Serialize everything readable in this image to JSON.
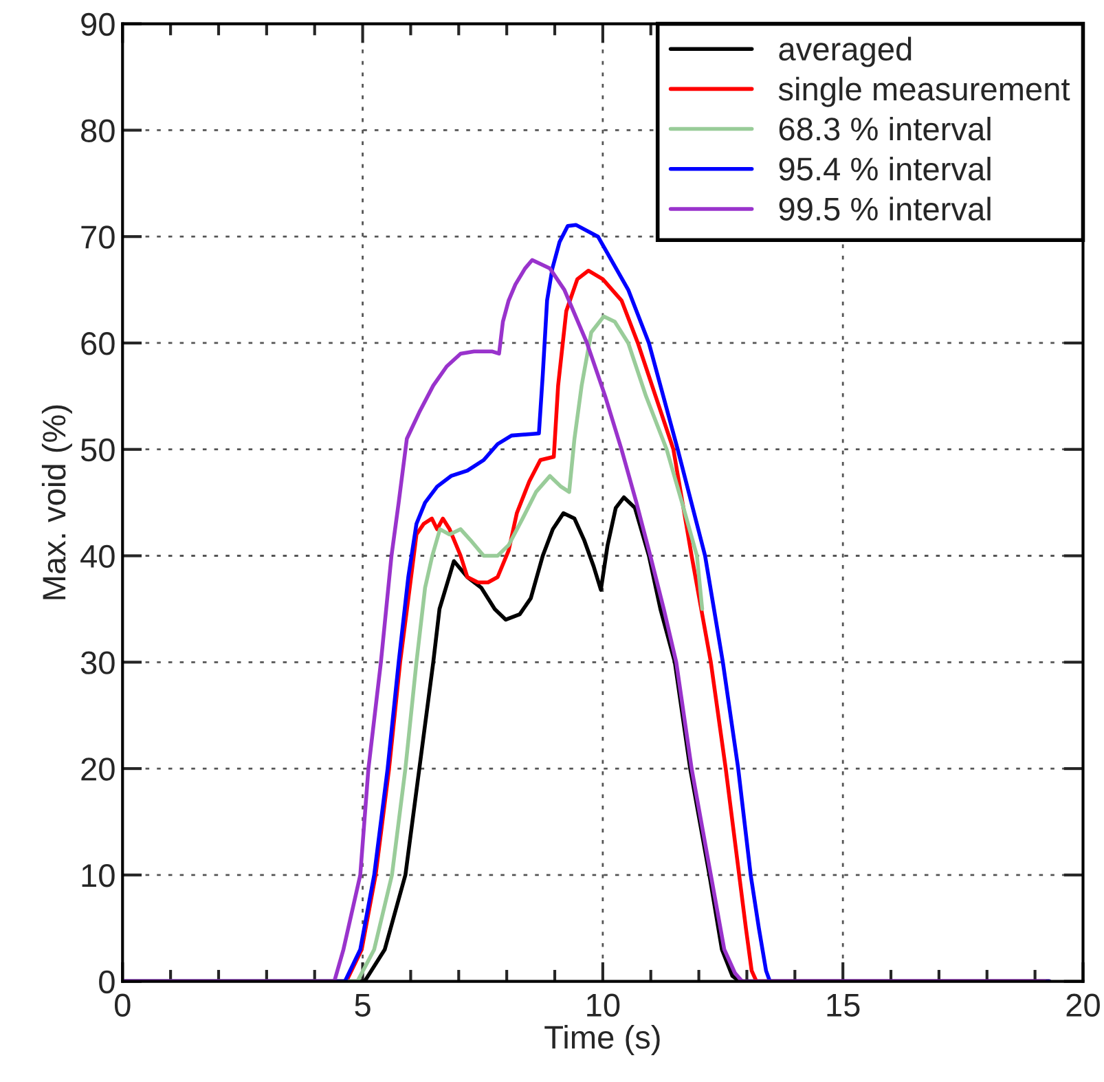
{
  "chart_data": {
    "type": "line",
    "xlabel": "Time (s)",
    "ylabel": "Max. void (%)",
    "xlim": [
      0,
      20
    ],
    "ylim": [
      0,
      90
    ],
    "xticks": [
      0,
      {
        "value": 1,
        "label": null
      },
      {
        "value": 2,
        "label": null
      },
      {
        "value": 3,
        "label": null
      },
      {
        "value": 4,
        "label": null
      },
      5,
      {
        "value": 6,
        "label": null
      },
      {
        "value": 7,
        "label": null
      },
      {
        "value": 8,
        "label": null
      },
      {
        "value": 9,
        "label": null
      },
      10,
      {
        "value": 11,
        "label": null
      },
      {
        "value": 12,
        "label": null
      },
      {
        "value": 13,
        "label": null
      },
      {
        "value": 14,
        "label": null
      },
      15,
      {
        "value": 16,
        "label": null
      },
      {
        "value": 17,
        "label": null
      },
      {
        "value": 18,
        "label": null
      },
      {
        "value": 19,
        "label": null
      },
      20
    ],
    "yticks": [
      0,
      10,
      20,
      30,
      40,
      50,
      60,
      70,
      80,
      90
    ],
    "grid": true,
    "legend": "top right",
    "marker": "none",
    "line_style": "solid",
    "series": [
      {
        "name": "averaged",
        "color": "#000000",
        "x": [
          0,
          5.04,
          5.46,
          5.89,
          6.18,
          6.47,
          6.6,
          6.8,
          6.9,
          7.18,
          7.47,
          7.75,
          7.98,
          8.27,
          8.5,
          8.75,
          8.96,
          9.18,
          9.41,
          9.61,
          9.81,
          9.96,
          10.1,
          10.27,
          10.44,
          10.67,
          10.96,
          11.2,
          11.5,
          11.82,
          12.22,
          12.48,
          12.7,
          12.85,
          19.3
        ],
        "values": [
          0,
          0,
          3,
          10,
          20,
          30,
          35,
          38,
          39.5,
          38,
          37,
          35,
          34,
          34.5,
          36,
          40,
          42.5,
          44,
          43.5,
          41.5,
          39,
          36.8,
          41,
          44.5,
          45.5,
          44.5,
          40,
          35,
          30,
          20,
          10,
          3,
          0.5,
          0,
          0
        ]
      },
      {
        "name": "single measurement",
        "color": "#ff0000",
        "x": [
          0,
          4.66,
          4.98,
          5.27,
          5.55,
          5.78,
          5.98,
          6.12,
          6.27,
          6.44,
          6.55,
          6.67,
          6.81,
          7.04,
          7.18,
          7.4,
          7.61,
          7.81,
          8.04,
          8.21,
          8.47,
          8.7,
          8.98,
          9.07,
          9.24,
          9.47,
          9.7,
          10.0,
          10.39,
          10.73,
          11.1,
          11.47,
          11.66,
          11.85,
          12.05,
          12.25,
          12.56,
          12.84,
          12.98,
          13.1,
          13.2,
          19.3
        ],
        "values": [
          0,
          0,
          3,
          10,
          20,
          30,
          37,
          42,
          43,
          43.5,
          42.5,
          43.5,
          42.5,
          40,
          38,
          37.5,
          37.5,
          38,
          40.5,
          44,
          47,
          49,
          49.3,
          56,
          63,
          66,
          66.8,
          66,
          64,
          60,
          55,
          50,
          45,
          40,
          35,
          30,
          20,
          10,
          5,
          1,
          0,
          0
        ]
      },
      {
        "name": "68.3 % interval",
        "color": "#99cc99",
        "x": [
          0,
          4.89,
          5.24,
          5.61,
          5.89,
          6.12,
          6.3,
          6.45,
          6.61,
          6.81,
          7.04,
          7.24,
          7.52,
          7.81,
          8.04,
          8.33,
          8.61,
          8.9,
          9.13,
          9.3,
          9.41,
          9.56,
          9.76,
          10.02,
          10.25,
          10.53,
          10.9,
          11.33,
          11.65,
          11.96,
          12.07
        ],
        "values": [
          0,
          0,
          3,
          10,
          20,
          30,
          37,
          40,
          42.5,
          42,
          42.5,
          41.5,
          40,
          40,
          41,
          43.5,
          46,
          47.5,
          46.5,
          46,
          51,
          56,
          61,
          62.5,
          62,
          60,
          55,
          50,
          45,
          40,
          35
        ]
      },
      {
        "name": "95.4 % interval",
        "color": "#0000ff",
        "x": [
          0,
          4.63,
          4.95,
          5.24,
          5.52,
          5.75,
          5.95,
          6.12,
          6.3,
          6.55,
          6.84,
          7.18,
          7.52,
          7.81,
          8.1,
          8.67,
          8.75,
          8.84,
          8.95,
          9.1,
          9.27,
          9.44,
          9.9,
          10.53,
          10.96,
          11.56,
          12.13,
          12.5,
          12.82,
          13.08,
          13.25,
          13.4,
          13.48,
          19.3
        ],
        "values": [
          0,
          0,
          3,
          10,
          20,
          30,
          38,
          43,
          45,
          46.5,
          47.5,
          48,
          49,
          50.5,
          51.3,
          51.5,
          57,
          64,
          67,
          69.5,
          71,
          71.1,
          70,
          65,
          60,
          50,
          40,
          30,
          20,
          10,
          5,
          1,
          0,
          0
        ]
      },
      {
        "name": "99.5 % interval",
        "color": "#9933cc",
        "x": [
          0,
          4.41,
          4.6,
          4.95,
          5.12,
          5.38,
          5.6,
          5.75,
          5.92,
          6.18,
          6.47,
          6.75,
          7.04,
          7.32,
          7.7,
          7.84,
          7.92,
          8.04,
          8.18,
          8.38,
          8.53,
          8.9,
          9.2,
          9.67,
          10.05,
          10.39,
          10.7,
          10.99,
          11.27,
          11.53,
          11.85,
          12.25,
          12.53,
          12.75,
          12.9,
          19.2
        ],
        "values": [
          0,
          0,
          3,
          10,
          20,
          30,
          40,
          45,
          51,
          53.5,
          56,
          57.8,
          59,
          59.2,
          59.2,
          59,
          62,
          64,
          65.5,
          67,
          67.8,
          67,
          65,
          60,
          55,
          50,
          45,
          40,
          35,
          30,
          20,
          10,
          3,
          0.8,
          0,
          0
        ]
      }
    ]
  }
}
